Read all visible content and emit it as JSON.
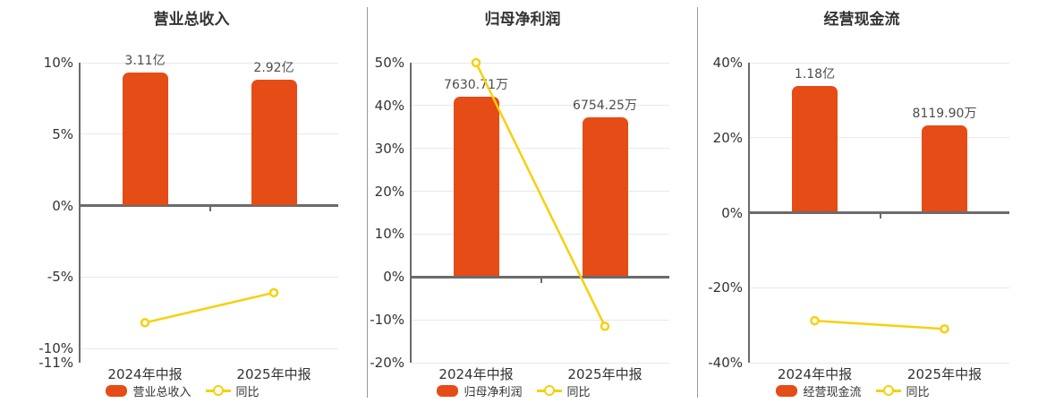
{
  "style": {
    "bar_color": "#E64C16",
    "line_color": "#F6D00E",
    "grid_color": "#E4E9F0",
    "axis_color": "#6B6B6B",
    "divider_color": "#999999"
  },
  "chart_data": [
    {
      "type": "bar+line",
      "title": "营业总收入",
      "categories": [
        "2024年中报",
        "2025年中报"
      ],
      "bar_series": {
        "name": "营业总收入",
        "value_labels": [
          "3.11亿",
          "2.92亿"
        ],
        "plot_pct": [
          9.3,
          8.78
        ]
      },
      "line_series": {
        "name": "同比",
        "values_pct": [
          -8.2,
          -6.1
        ]
      },
      "y_axis": {
        "min": -11,
        "max": 10,
        "ticks": [
          {
            "v": 10,
            "label": "10%",
            "grid": true
          },
          {
            "v": 5,
            "label": "5%",
            "grid": true
          },
          {
            "v": 0,
            "label": "0%",
            "grid": false
          },
          {
            "v": -5,
            "label": "-5%",
            "grid": true
          },
          {
            "v": -10,
            "label": "-10%",
            "grid": true
          },
          {
            "v": -11,
            "label": "-11%",
            "grid": false
          }
        ]
      },
      "legend": {
        "bar_label": "营业总收入",
        "line_label": "同比"
      }
    },
    {
      "type": "bar+line",
      "title": "归母净利润",
      "categories": [
        "2024年中报",
        "2025年中报"
      ],
      "bar_series": {
        "name": "归母净利润",
        "value_labels": [
          "7630.71万",
          "6754.25万"
        ],
        "plot_pct": [
          42.0,
          37.2
        ]
      },
      "line_series": {
        "name": "同比",
        "values_pct": [
          50.0,
          -11.5
        ]
      },
      "y_axis": {
        "min": -20,
        "max": 50,
        "ticks": [
          {
            "v": 50,
            "label": "50%",
            "grid": true
          },
          {
            "v": 40,
            "label": "40%",
            "grid": true
          },
          {
            "v": 30,
            "label": "30%",
            "grid": true
          },
          {
            "v": 20,
            "label": "20%",
            "grid": true
          },
          {
            "v": 10,
            "label": "10%",
            "grid": true
          },
          {
            "v": 0,
            "label": "0%",
            "grid": false
          },
          {
            "v": -10,
            "label": "-10%",
            "grid": true
          },
          {
            "v": -20,
            "label": "-20%",
            "grid": true
          }
        ]
      },
      "legend": {
        "bar_label": "归母净利润",
        "line_label": "同比"
      }
    },
    {
      "type": "bar+line",
      "title": "经营现金流",
      "categories": [
        "2024年中报",
        "2025年中报"
      ],
      "bar_series": {
        "name": "经营现金流",
        "value_labels": [
          "1.18亿",
          "8119.90万"
        ],
        "plot_pct": [
          33.8,
          23.3
        ]
      },
      "line_series": {
        "name": "同比",
        "values_pct": [
          -28.8,
          -31.0
        ]
      },
      "y_axis": {
        "min": -40,
        "max": 40,
        "ticks": [
          {
            "v": 40,
            "label": "40%",
            "grid": true
          },
          {
            "v": 20,
            "label": "20%",
            "grid": true
          },
          {
            "v": 0,
            "label": "0%",
            "grid": false
          },
          {
            "v": -20,
            "label": "-20%",
            "grid": true
          },
          {
            "v": -40,
            "label": "-40%",
            "grid": true
          }
        ]
      },
      "legend": {
        "bar_label": "经营现金流",
        "line_label": "同比"
      }
    }
  ]
}
